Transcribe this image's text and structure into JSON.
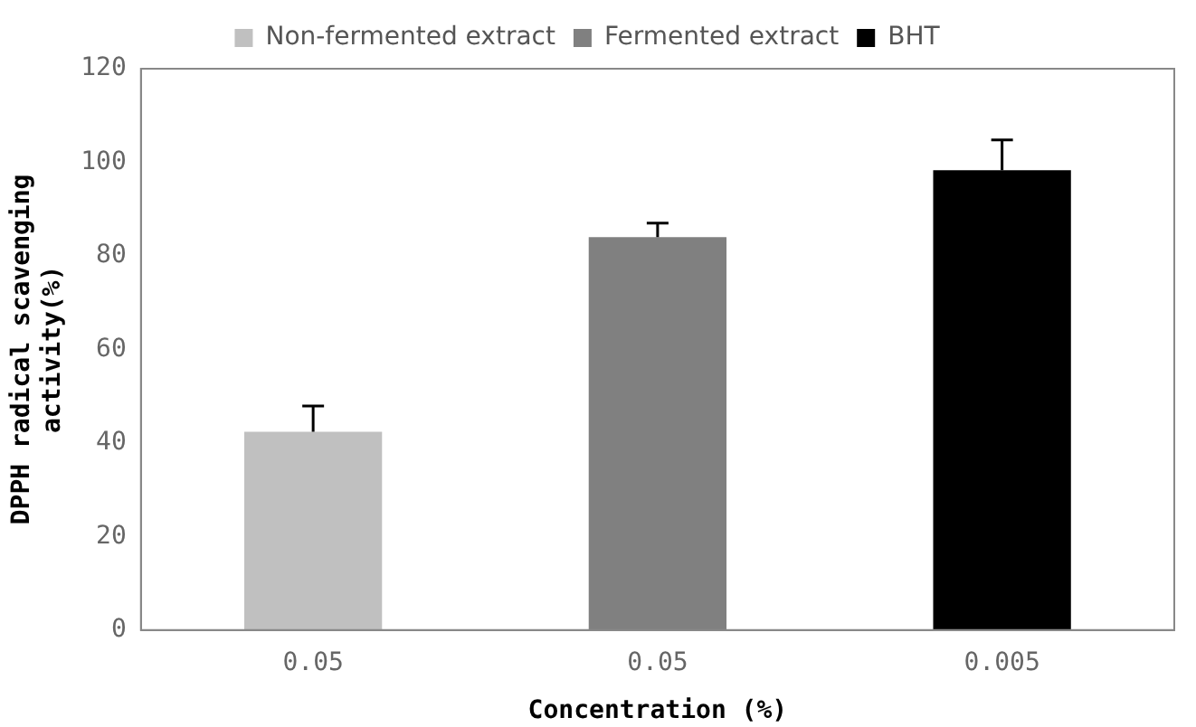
{
  "chart_data": {
    "type": "bar",
    "xlabel": "Concentration (%)",
    "ylabel": "DPPH radical scavenging activity(%)",
    "categories": [
      "0.05",
      "0.05",
      "0.005"
    ],
    "series": [
      {
        "name": "Non-fermented extract",
        "color": "#c0c0c0",
        "values": [
          42.4,
          null,
          null
        ],
        "errors": [
          5.5,
          null,
          null
        ]
      },
      {
        "name": "Fermented extract",
        "color": "#808080",
        "values": [
          null,
          84,
          null
        ],
        "errors": [
          null,
          3,
          null
        ]
      },
      {
        "name": "BHT",
        "color": "#000000",
        "values": [
          null,
          null,
          98.3
        ],
        "errors": [
          null,
          null,
          6.5
        ]
      }
    ],
    "ylim": [
      0,
      120
    ],
    "yticks": [
      0,
      20,
      40,
      60,
      80,
      100,
      120
    ],
    "grid": false,
    "legend": "top"
  }
}
